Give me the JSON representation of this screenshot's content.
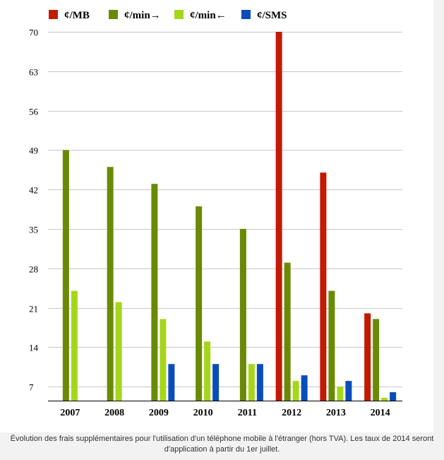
{
  "chart_data": {
    "type": "bar",
    "categories": [
      "2007",
      "2008",
      "2009",
      "2010",
      "2011",
      "2012",
      "2013",
      "2014"
    ],
    "series": [
      {
        "name": "¢/MB",
        "color": "#c21a01",
        "values": [
          null,
          null,
          null,
          null,
          null,
          70,
          45,
          20
        ]
      },
      {
        "name": "¢/min→",
        "color": "#6a8a06",
        "values": [
          49,
          46,
          43,
          39,
          35,
          29,
          24,
          19
        ]
      },
      {
        "name": "¢/min←",
        "color": "#a5d61b",
        "values": [
          24,
          22,
          19,
          15,
          11,
          8,
          7,
          5
        ]
      },
      {
        "name": "¢/SMS",
        "color": "#0a4cba",
        "values": [
          null,
          null,
          11,
          11,
          11,
          9,
          8,
          6
        ]
      }
    ],
    "yticks": [
      7,
      14,
      21,
      28,
      35,
      42,
      49,
      56,
      63,
      70
    ],
    "ylim": [
      4.5,
      70
    ],
    "grid": true,
    "legend_position": "top"
  },
  "caption": "Évolution des frais supplémentaires pour l'utilisation d'un téléphone mobile à l'étranger (hors TVA). Les taux de 2014 seront d'application à partir du 1er juillet."
}
